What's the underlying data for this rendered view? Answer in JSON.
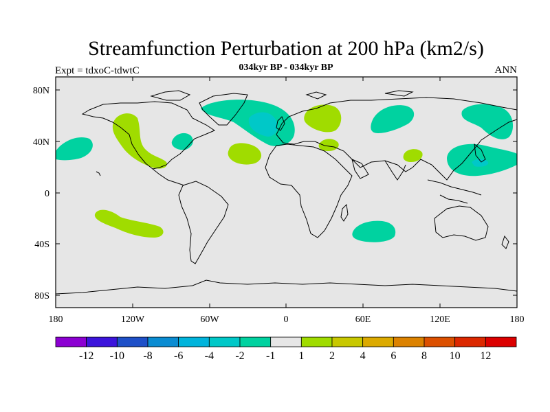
{
  "title": "Streamfunction Perturbation at 200 hPa (km2/s)",
  "subtitle": "034kyr BP - 034kyr BP",
  "left_label": "Expt = tdxoC-tdwtC",
  "right_label": "ANN",
  "map": {
    "lat_ticks": [
      "80N",
      "40N",
      "0",
      "40S",
      "80S"
    ],
    "lon_ticks": [
      "180",
      "120W",
      "60W",
      "0",
      "60E",
      "120E",
      "180"
    ],
    "background_color": "#e6e6e6"
  },
  "colorbar": {
    "colors": [
      "#8c00d2",
      "#3c14dc",
      "#1e50c8",
      "#0a8cd2",
      "#00b4dc",
      "#00c8c8",
      "#00d2a0",
      "#e6e6e6",
      "#a0dc00",
      "#c8c800",
      "#dcaa00",
      "#dc8200",
      "#dc5000",
      "#dc2800",
      "#dc0000"
    ],
    "labels": [
      "-12",
      "-10",
      "-8",
      "-6",
      "-4",
      "-2",
      "-1",
      "1",
      "2",
      "4",
      "6",
      "8",
      "10",
      "12"
    ]
  },
  "contour_regions": [
    {
      "name": "north-atlantic-region",
      "level": "-2",
      "color": "#00d2a0"
    },
    {
      "name": "north-atlantic-core",
      "level": "-4",
      "color": "#00c8c8"
    },
    {
      "name": "scandinavia-region",
      "level": "2",
      "color": "#a0dc00"
    },
    {
      "name": "west-siberia-region",
      "level": "-2",
      "color": "#00d2a0"
    },
    {
      "name": "east-siberia-region",
      "level": "-2",
      "color": "#00d2a0"
    },
    {
      "name": "west-pacific-region",
      "level": "-2",
      "color": "#00d2a0"
    },
    {
      "name": "west-pacific-core",
      "level": "-4",
      "color": "#00c8c8"
    },
    {
      "name": "north-america-west-region",
      "level": "2",
      "color": "#a0dc00"
    },
    {
      "name": "northeast-pacific-region",
      "level": "-2",
      "color": "#00d2a0"
    },
    {
      "name": "mid-atlantic-region",
      "level": "2",
      "color": "#a0dc00"
    },
    {
      "name": "great-lakes-region",
      "level": "-2",
      "color": "#00d2a0"
    },
    {
      "name": "mediterranean-region",
      "level": "2",
      "color": "#a0dc00"
    },
    {
      "name": "south-asia-region",
      "level": "2",
      "color": "#a0dc00"
    },
    {
      "name": "south-pacific-region",
      "level": "2",
      "color": "#a0dc00"
    },
    {
      "name": "south-indian-ocean-region",
      "level": "-2",
      "color": "#00d2a0"
    }
  ]
}
